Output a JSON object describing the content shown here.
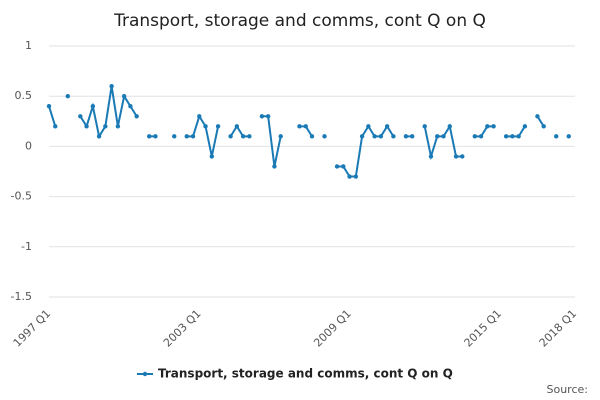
{
  "chart_data": {
    "type": "line",
    "title": "Transport, storage and comms, cont Q on Q",
    "categories": [
      "1997 Q1",
      null,
      null,
      null,
      null,
      null,
      null,
      null,
      null,
      null,
      null,
      null,
      null,
      null,
      null,
      null,
      null,
      null,
      null,
      null,
      null,
      null,
      null,
      null,
      "2003 Q1",
      null,
      null,
      null,
      null,
      null,
      null,
      null,
      null,
      null,
      null,
      null,
      null,
      null,
      null,
      null,
      null,
      null,
      null,
      null,
      null,
      null,
      null,
      null,
      "2009 Q1",
      null,
      null,
      null,
      null,
      null,
      null,
      null,
      null,
      null,
      null,
      null,
      null,
      null,
      null,
      null,
      null,
      null,
      null,
      null,
      null,
      null,
      null,
      null,
      "2015 Q1",
      null,
      null,
      null,
      null,
      null,
      null,
      null,
      null,
      null,
      null,
      null,
      "2018 Q1"
    ],
    "series": [
      {
        "name": "Transport, storage and comms, cont Q on Q",
        "color": "#1a7ab5",
        "values": [
          0.4,
          0.2,
          null,
          0.5,
          null,
          0.3,
          0.2,
          0.4,
          0.1,
          0.2,
          0.6,
          0.2,
          0.5,
          0.4,
          0.3,
          null,
          0.1,
          0.1,
          null,
          null,
          0.1,
          null,
          0.1,
          0.1,
          0.3,
          0.2,
          -0.1,
          0.2,
          null,
          0.1,
          0.2,
          0.1,
          0.1,
          null,
          0.3,
          0.3,
          -0.2,
          0.1,
          null,
          null,
          0.2,
          0.2,
          0.1,
          null,
          0.1,
          null,
          -0.2,
          -0.2,
          -0.3,
          -0.3,
          0.1,
          0.2,
          0.1,
          0.1,
          0.2,
          0.1,
          null,
          0.1,
          0.1,
          null,
          0.2,
          -0.1,
          0.1,
          0.1,
          0.2,
          -0.1,
          -0.1,
          null,
          0.1,
          0.1,
          0.2,
          0.2,
          null,
          0.1,
          0.1,
          0.1,
          0.2,
          null,
          0.3,
          0.2,
          null,
          0.1,
          null,
          0.1,
          null
        ]
      }
    ],
    "ylim": [
      -1.5,
      1
    ],
    "yticks": [
      1,
      0.5,
      0,
      -0.5,
      -1,
      -1.5
    ],
    "grid": true,
    "legend": "bottom",
    "source": "Source:"
  }
}
